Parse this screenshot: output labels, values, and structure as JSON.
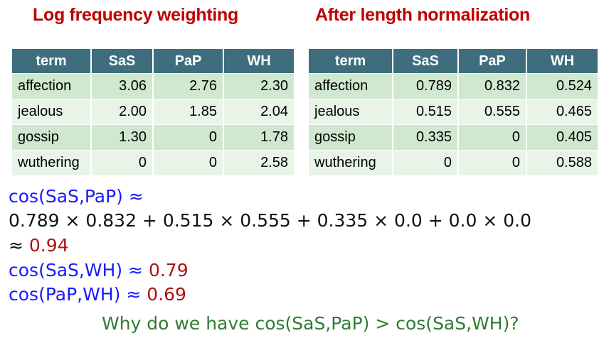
{
  "headings": {
    "left": "Log frequency weighting",
    "right": "After length normalization"
  },
  "left_table": {
    "columns": [
      "term",
      "SaS",
      "PaP",
      "WH"
    ],
    "rows": [
      [
        "affection",
        "3.06",
        "2.76",
        "2.30"
      ],
      [
        "jealous",
        "2.00",
        "1.85",
        "2.04"
      ],
      [
        "gossip",
        "1.30",
        "0",
        "1.78"
      ],
      [
        "wuthering",
        "0",
        "0",
        "2.58"
      ]
    ]
  },
  "right_table": {
    "columns": [
      "term",
      "SaS",
      "PaP",
      "WH"
    ],
    "rows": [
      [
        "affection",
        "0.789",
        "0.832",
        "0.524"
      ],
      [
        "jealous",
        "0.515",
        "0.555",
        "0.465"
      ],
      [
        "gossip",
        "0.335",
        "0",
        "0.405"
      ],
      [
        "wuthering",
        "0",
        "0",
        "0.588"
      ]
    ]
  },
  "calculation": {
    "line1": "cos(SaS,PaP) ≈",
    "line2": "0.789 × 0.832 + 0.515 × 0.555 + 0.335 × 0.0 + 0.0 × 0.0",
    "line3_prefix": "≈ ",
    "line3_value": "0.94",
    "line4_label": "cos(SaS,WH) ≈ ",
    "line4_value": "0.79",
    "line5_label": "cos(PaP,WH) ≈ ",
    "line5_value": "0.69"
  },
  "question": "Why do we have cos(SaS,PaP) > cos(SaS,WH)?",
  "colors": {
    "heading": "#c00000",
    "table_header": "#3e6e7e",
    "row_dark": "#cfe8cf",
    "row_light": "#e8f4e8",
    "formula_blue": "#1a1aff",
    "result_red": "#b01010",
    "question_green": "#2e7d32"
  }
}
